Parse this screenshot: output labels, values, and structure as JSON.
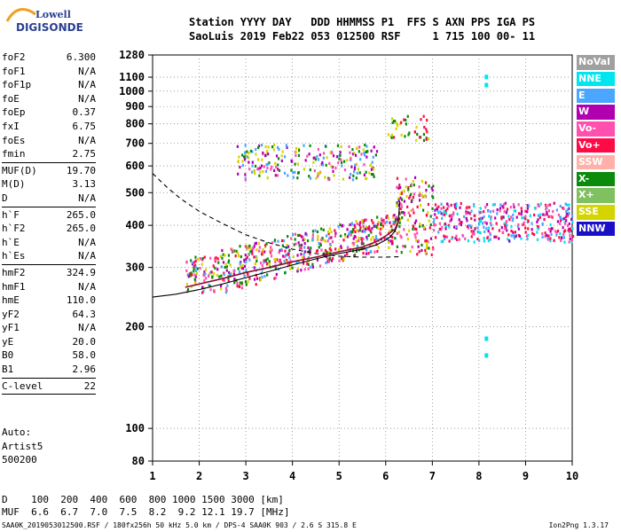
{
  "logo": {
    "line1": "Lowell",
    "line2": "DIGISONDE"
  },
  "header": {
    "line1": "Station YYYY DAY   DDD HHMMSS P1  FFS S AXN PPS IGA PS",
    "line2": "SaoLuis 2019 Feb22 053 012500 RSF     1 715 100 00- 11"
  },
  "params": [
    {
      "label": "foF2",
      "value": "6.300"
    },
    {
      "label": "foF1",
      "value": "N/A"
    },
    {
      "label": "foF1p",
      "value": "N/A"
    },
    {
      "label": "foE",
      "value": "N/A"
    },
    {
      "label": "foEp",
      "value": "0.37"
    },
    {
      "label": "fxI",
      "value": "6.75"
    },
    {
      "label": "foEs",
      "value": "N/A"
    },
    {
      "label": "fmin",
      "value": "2.75"
    },
    {
      "sep": true
    },
    {
      "label": "MUF(D)",
      "value": "19.70"
    },
    {
      "label": "M(D)",
      "value": "3.13"
    },
    {
      "label": "D",
      "value": "N/A"
    },
    {
      "sep": true
    },
    {
      "label": "h`F",
      "value": "265.0"
    },
    {
      "label": "h`F2",
      "value": "265.0"
    },
    {
      "label": "h`E",
      "value": "N/A"
    },
    {
      "label": "h`Es",
      "value": "N/A"
    },
    {
      "sep": true
    },
    {
      "label": "hmF2",
      "value": "324.9"
    },
    {
      "label": "hmF1",
      "value": "N/A"
    },
    {
      "label": "hmE",
      "value": "110.0"
    },
    {
      "label": "yF2",
      "value": "64.3"
    },
    {
      "label": "yF1",
      "value": "N/A"
    },
    {
      "label": "yE",
      "value": "20.0"
    },
    {
      "label": "B0",
      "value": "58.0"
    },
    {
      "label": "B1",
      "value": "2.96"
    },
    {
      "sep": true
    },
    {
      "label": "C-level",
      "value": "22"
    },
    {
      "sep": true
    }
  ],
  "auto": {
    "line1": "Auto:",
    "line2": "Artist5",
    "line3": "500200"
  },
  "bottom": {
    "d_line": "D    100  200  400  600  800 1000 1500 3000 [km]",
    "muf_line": "MUF  6.6  6.7  7.0  7.5  8.2  9.2 12.1 19.7 [MHz]"
  },
  "footer": "SAA0K_2019053012500.RSF / 180fx256h 50 kHz 5.0 km / DPS-4 SAA0K 903 / 2.6 S 315.8 E",
  "version": "Ion2Png 1.3.17",
  "legend": [
    {
      "label": "NoVal",
      "color": "#a0a0a0"
    },
    {
      "label": "NNE",
      "color": "#00e5ee"
    },
    {
      "label": "E",
      "color": "#4aa6ff"
    },
    {
      "label": "W",
      "color": "#b000b0"
    },
    {
      "label": "Vo-",
      "color": "#ff4faf"
    },
    {
      "label": "Vo+",
      "color": "#ff0a46"
    },
    {
      "label": "SSW",
      "color": "#ffb0a8"
    },
    {
      "label": "X-",
      "color": "#0b8a0b"
    },
    {
      "label": "X+",
      "color": "#7fc060"
    },
    {
      "label": "SSE",
      "color": "#d4d400"
    },
    {
      "label": "NNW",
      "color": "#1a10c8"
    }
  ],
  "chart_data": {
    "type": "scatter",
    "xlabel": "",
    "ylabel": "",
    "xlim": [
      1,
      10
    ],
    "ylim_log": [
      80,
      1280
    ],
    "x_ticks": [
      "1",
      "2",
      "3",
      "4",
      "5",
      "6",
      "7",
      "8",
      "9",
      "10"
    ],
    "y_ticks": [
      80,
      100,
      200,
      300,
      400,
      500,
      600,
      700,
      800,
      900,
      1000,
      1100,
      1280
    ],
    "grid": true,
    "legend_placement": "right",
    "profile_curve": {
      "x": [
        1.0,
        1.5,
        2.0,
        2.5,
        3.0,
        3.5,
        4.0,
        4.5,
        5.0,
        5.5,
        5.8,
        6.0,
        6.1,
        6.2,
        6.25,
        6.28,
        6.3
      ],
      "y": [
        245,
        250,
        258,
        268,
        280,
        292,
        305,
        318,
        330,
        340,
        350,
        362,
        370,
        385,
        400,
        430,
        470
      ]
    },
    "dashed_curve": {
      "x": [
        1.0,
        1.3,
        1.6,
        2.0,
        2.5,
        3.0,
        3.5,
        4.0,
        4.5,
        5.0,
        5.5,
        6.0,
        6.3
      ],
      "y": [
        570,
        520,
        480,
        440,
        405,
        375,
        355,
        340,
        330,
        324,
        322,
        322,
        323
      ]
    },
    "traced_trace": {
      "x": [
        1.7,
        2.0,
        2.5,
        3.0,
        3.5,
        4.0,
        4.5,
        5.0,
        5.5,
        5.8,
        6.0,
        6.2,
        6.3
      ],
      "y": [
        262,
        268,
        278,
        290,
        300,
        312,
        322,
        334,
        345,
        358,
        372,
        390,
        420
      ]
    },
    "clusters": [
      {
        "name": "o-trace F layer",
        "x": [
          1.7,
          6.3
        ],
        "y": [
          255,
          440
        ],
        "n": 620,
        "colors": [
          "Vo+",
          "Vo-",
          "SSE",
          "W",
          "X-",
          "E"
        ]
      },
      {
        "name": "x-trace F layer",
        "x": [
          6.2,
          7.0
        ],
        "y": [
          330,
          560
        ],
        "n": 140,
        "colors": [
          "Vo+",
          "Vo-",
          "W",
          "X-",
          "SSE"
        ]
      },
      {
        "name": "spread F",
        "x": [
          7.0,
          10.0
        ],
        "y": [
          360,
          470
        ],
        "n": 380,
        "colors": [
          "W",
          "Vo-",
          "E",
          "NNE",
          "Vo+"
        ]
      },
      {
        "name": "multiple-hop echoes",
        "x": [
          2.8,
          5.8
        ],
        "y": [
          550,
          700
        ],
        "n": 230,
        "colors": [
          "SSE",
          "W",
          "E",
          "Vo-",
          "X-"
        ]
      },
      {
        "name": "upper echoes",
        "x": [
          6.0,
          6.9
        ],
        "y": [
          720,
          850
        ],
        "n": 40,
        "colors": [
          "SSE",
          "X-",
          "Vo+"
        ]
      }
    ]
  }
}
